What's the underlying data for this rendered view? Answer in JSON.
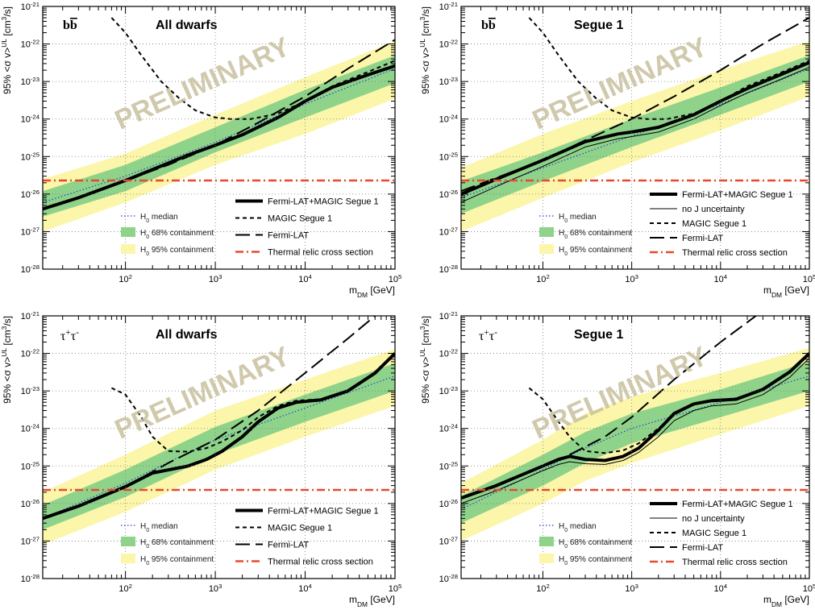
{
  "watermark_text": "PRELIMINARY",
  "colors": {
    "band95": "#fbf6a9",
    "band68": "#8fd38a",
    "median": "#2244cc",
    "relic": "#e8492d",
    "grid": "#7a7a7a",
    "watermark": "#c8bf9e"
  },
  "legend_labels": {
    "median": "median",
    "c68": "68% containment",
    "c95": "95% containment",
    "h0_base": "H",
    "h0_sub": "0"
  },
  "chart_data": [
    {
      "type": "line",
      "channel": "bb",
      "title": "All dwarfs",
      "xlabel_base": "m",
      "xlabel_sub": "DM",
      "xlabel_unit": " [GeV]",
      "ylabel": "95% <σ v>",
      "ylabel_sup": "UL",
      "ylabel_unit": " [cm",
      "ylabel_unit_sup": "3",
      "ylabel_unit_end": "/s]",
      "xscale": "log",
      "yscale": "log",
      "xlim": [
        12,
        100000
      ],
      "ylim": [
        1e-28,
        1e-21
      ],
      "x_ticks": [
        {
          "base": "10",
          "exp": "2"
        },
        {
          "base": "10",
          "exp": "3"
        },
        {
          "base": "10",
          "exp": "4"
        },
        {
          "base": "10",
          "exp": "5"
        }
      ],
      "y_ticks": [
        {
          "base": "10",
          "exp": "-28"
        },
        {
          "base": "10",
          "exp": "-27"
        },
        {
          "base": "10",
          "exp": "-26"
        },
        {
          "base": "10",
          "exp": "-25"
        },
        {
          "base": "10",
          "exp": "-24"
        },
        {
          "base": "10",
          "exp": "-23"
        },
        {
          "base": "10",
          "exp": "-22"
        },
        {
          "base": "10",
          "exp": "-21"
        }
      ],
      "legend": [
        "Fermi-LAT+MAGIC Segue 1",
        "MAGIC Segue 1",
        "Fermi-LAT",
        "Thermal relic cross section"
      ],
      "series": [
        {
          "name": "Fermi-LAT+MAGIC Segue 1",
          "style": "thick",
          "x": [
            12,
            30,
            100,
            200,
            500,
            1000,
            2000,
            5000,
            10000,
            20000,
            50000,
            100000
          ],
          "y": [
            4e-27,
            8e-27,
            2.3e-26,
            4.5e-26,
            1.1e-25,
            2e-25,
            3.8e-25,
            1.1e-24,
            3e-24,
            7e-24,
            1.5e-23,
            2.6e-23
          ]
        },
        {
          "name": "MAGIC Segue 1",
          "style": "short-dash",
          "x": [
            70,
            100,
            150,
            250,
            400,
            600,
            1000,
            1500,
            2500,
            5000,
            10000,
            20000,
            50000,
            100000
          ],
          "y": [
            5e-22,
            2e-22,
            5e-23,
            1e-23,
            3.5e-24,
            1.7e-24,
            1.1e-24,
            1e-24,
            1e-24,
            1.4e-24,
            3e-24,
            7.5e-24,
            1.8e-23,
            3.6e-23
          ]
        },
        {
          "name": "Fermi-LAT",
          "style": "long-dash",
          "x": [
            100,
            300,
            1000,
            3000,
            10000,
            30000,
            100000
          ],
          "y": [
            2.3e-26,
            6e-26,
            2e-25,
            8e-25,
            4e-24,
            2.2e-23,
            1.3e-22
          ]
        },
        {
          "name": "Thermal relic cross section",
          "style": "dash-dot",
          "x": [
            12,
            100000
          ],
          "y": [
            2.3e-26,
            2.3e-26
          ]
        }
      ],
      "expected": {
        "x": [
          12,
          100,
          1000,
          10000,
          100000
        ],
        "median": [
          6e-27,
          3e-26,
          2.4e-25,
          2.5e-24,
          2.2e-23
        ],
        "lo68": [
          2.5e-27,
          1.2e-26,
          1.3e-25,
          1.1e-24,
          9e-24
        ],
        "hi68": [
          1.2e-26,
          6e-26,
          6e-25,
          6e-24,
          5e-23
        ],
        "lo95": [
          1e-27,
          6e-27,
          6e-26,
          4e-25,
          3.5e-24
        ],
        "hi95": [
          2.5e-26,
          1.2e-25,
          1.3e-24,
          1.3e-23,
          1.2e-22
        ]
      }
    },
    {
      "type": "line",
      "channel": "bb",
      "title": "Segue 1",
      "xlabel_base": "m",
      "xlabel_sub": "DM",
      "xlabel_unit": " [GeV]",
      "ylabel": "95% <σ v>",
      "ylabel_sup": "UL",
      "ylabel_unit": " [cm",
      "ylabel_unit_sup": "3",
      "ylabel_unit_end": "/s]",
      "xscale": "log",
      "yscale": "log",
      "xlim": [
        12,
        100000
      ],
      "ylim": [
        1e-28,
        1e-21
      ],
      "x_ticks": [
        {
          "base": "10",
          "exp": "2"
        },
        {
          "base": "10",
          "exp": "3"
        },
        {
          "base": "10",
          "exp": "4"
        },
        {
          "base": "10",
          "exp": "5"
        }
      ],
      "y_ticks": [
        {
          "base": "10",
          "exp": "-28"
        },
        {
          "base": "10",
          "exp": "-27"
        },
        {
          "base": "10",
          "exp": "-26"
        },
        {
          "base": "10",
          "exp": "-25"
        },
        {
          "base": "10",
          "exp": "-24"
        },
        {
          "base": "10",
          "exp": "-23"
        },
        {
          "base": "10",
          "exp": "-22"
        },
        {
          "base": "10",
          "exp": "-21"
        }
      ],
      "legend": [
        "Fermi-LAT+MAGIC Segue 1",
        "no J uncertainty",
        "MAGIC Segue 1",
        "Fermi-LAT",
        "Thermal relic cross section"
      ],
      "series": [
        {
          "name": "Fermi-LAT+MAGIC Segue 1",
          "style": "thick",
          "x": [
            12,
            30,
            100,
            300,
            700,
            1000,
            2000,
            5000,
            10000,
            20000,
            50000,
            100000
          ],
          "y": [
            1e-26,
            2.5e-26,
            8e-26,
            2.5e-25,
            4e-25,
            4.5e-25,
            6e-25,
            1.3e-24,
            3e-24,
            6.5e-24,
            1.6e-23,
            3.2e-23
          ]
        },
        {
          "name": "no J uncertainty",
          "style": "thin",
          "x": [
            12,
            30,
            100,
            300,
            700,
            1000,
            2000,
            5000,
            10000,
            20000,
            50000,
            100000
          ],
          "y": [
            6e-27,
            1.6e-26,
            5.5e-26,
            1.8e-25,
            3e-25,
            3.4e-25,
            4.5e-25,
            1e-24,
            2.3e-24,
            5e-24,
            1.2e-23,
            2.4e-23
          ]
        },
        {
          "name": "MAGIC Segue 1",
          "style": "short-dash",
          "x": [
            70,
            100,
            150,
            250,
            400,
            600,
            1000,
            1500,
            2500,
            5000,
            10000,
            20000,
            50000,
            100000
          ],
          "y": [
            5e-22,
            2e-22,
            5e-23,
            1e-23,
            3.5e-24,
            1.7e-24,
            1.1e-24,
            1e-24,
            1e-24,
            1.4e-24,
            3e-24,
            7.5e-24,
            1.8e-23,
            3.6e-23
          ]
        },
        {
          "name": "Fermi-LAT",
          "style": "long-dash",
          "x": [
            12,
            100,
            300,
            1000,
            3000,
            10000,
            30000,
            100000
          ],
          "y": [
            1.2e-26,
            8e-26,
            2.7e-25,
            1e-24,
            4e-24,
            2e-23,
            1e-22,
            5e-22
          ]
        },
        {
          "name": "Thermal relic cross section",
          "style": "dash-dot",
          "x": [
            12,
            100000
          ],
          "y": [
            2.3e-26,
            2.3e-26
          ]
        }
      ],
      "expected": {
        "x": [
          12,
          100,
          1000,
          10000,
          100000
        ],
        "median": [
          8e-27,
          5e-26,
          3.5e-25,
          2.5e-24,
          2.2e-23
        ],
        "lo68": [
          3e-27,
          2.2e-26,
          1.8e-25,
          1.3e-24,
          1e-23
        ],
        "hi68": [
          2.2e-26,
          1.3e-25,
          1e-24,
          7e-24,
          5e-23
        ],
        "lo95": [
          1e-27,
          8e-27,
          7e-26,
          5e-25,
          4e-24
        ],
        "hi95": [
          5e-26,
          4e-25,
          3e-24,
          2e-23,
          1.2e-22
        ]
      }
    },
    {
      "type": "line",
      "channel": "tautau",
      "title": "All dwarfs",
      "xlabel_base": "m",
      "xlabel_sub": "DM",
      "xlabel_unit": " [GeV]",
      "ylabel": "95% <σ v>",
      "ylabel_sup": "UL",
      "ylabel_unit": " [cm",
      "ylabel_unit_sup": "3",
      "ylabel_unit_end": "/s]",
      "xscale": "log",
      "yscale": "log",
      "xlim": [
        12,
        100000
      ],
      "ylim": [
        1e-28,
        1e-21
      ],
      "x_ticks": [
        {
          "base": "10",
          "exp": "2"
        },
        {
          "base": "10",
          "exp": "3"
        },
        {
          "base": "10",
          "exp": "4"
        },
        {
          "base": "10",
          "exp": "5"
        }
      ],
      "y_ticks": [
        {
          "base": "10",
          "exp": "-28"
        },
        {
          "base": "10",
          "exp": "-27"
        },
        {
          "base": "10",
          "exp": "-26"
        },
        {
          "base": "10",
          "exp": "-25"
        },
        {
          "base": "10",
          "exp": "-24"
        },
        {
          "base": "10",
          "exp": "-23"
        },
        {
          "base": "10",
          "exp": "-22"
        },
        {
          "base": "10",
          "exp": "-21"
        }
      ],
      "legend": [
        "Fermi-LAT+MAGIC Segue 1",
        "MAGIC Segue 1",
        "Fermi-LAT",
        "Thermal relic cross section"
      ],
      "series": [
        {
          "name": "Fermi-LAT+MAGIC Segue 1",
          "style": "thick",
          "x": [
            12,
            30,
            100,
            200,
            500,
            800,
            1200,
            2000,
            3000,
            5000,
            8000,
            15000,
            30000,
            60000,
            100000
          ],
          "y": [
            4e-27,
            8.5e-27,
            2.8e-26,
            6.5e-26,
            1e-25,
            1.5e-25,
            2.5e-25,
            6e-25,
            1.5e-24,
            3.5e-24,
            5e-24,
            5.8e-24,
            1e-23,
            3e-23,
            1e-22
          ]
        },
        {
          "name": "MAGIC Segue 1",
          "style": "short-dash",
          "x": [
            70,
            100,
            150,
            200,
            300,
            500,
            800,
            1200,
            2000,
            3000,
            5000,
            8000,
            15000,
            30000,
            60000,
            100000
          ],
          "y": [
            1.2e-23,
            8e-24,
            2e-24,
            6e-25,
            2.5e-25,
            2.4e-25,
            3e-25,
            4.5e-25,
            9e-25,
            2e-24,
            4e-24,
            5.5e-24,
            6e-24,
            1e-23,
            3e-23,
            1e-22
          ]
        },
        {
          "name": "Fermi-LAT",
          "style": "long-dash",
          "x": [
            100,
            300,
            1000,
            3000,
            10000,
            30000,
            60000
          ],
          "y": [
            2.8e-26,
            1.2e-25,
            5e-25,
            3e-24,
            3e-23,
            2.5e-22,
            1e-21
          ]
        },
        {
          "name": "Thermal relic cross section",
          "style": "dash-dot",
          "x": [
            12,
            100000
          ],
          "y": [
            2.3e-26,
            2.3e-26
          ]
        }
      ],
      "expected": {
        "x": [
          12,
          100,
          1000,
          10000,
          100000
        ],
        "median": [
          4e-27,
          3.5e-26,
          5e-25,
          3.5e-24,
          2.5e-23
        ],
        "lo68": [
          2e-27,
          1.5e-26,
          2e-25,
          1.5e-24,
          1e-23
        ],
        "hi68": [
          9e-27,
          8e-26,
          1.1e-24,
          8e-24,
          5.5e-23
        ],
        "lo95": [
          8e-28,
          6e-27,
          8e-26,
          6e-25,
          4e-24
        ],
        "hi95": [
          2e-26,
          2e-25,
          3e-24,
          2e-23,
          1.3e-22
        ]
      }
    },
    {
      "type": "line",
      "channel": "tautau",
      "title": "Segue 1",
      "xlabel_base": "m",
      "xlabel_sub": "DM",
      "xlabel_unit": " [GeV]",
      "ylabel": "95% <σ v>",
      "ylabel_sup": "UL",
      "ylabel_unit": " [cm",
      "ylabel_unit_sup": "3",
      "ylabel_unit_end": "/s]",
      "xscale": "log",
      "yscale": "log",
      "xlim": [
        12,
        100000
      ],
      "ylim": [
        1e-28,
        1e-21
      ],
      "x_ticks": [
        {
          "base": "10",
          "exp": "2"
        },
        {
          "base": "10",
          "exp": "3"
        },
        {
          "base": "10",
          "exp": "4"
        },
        {
          "base": "10",
          "exp": "5"
        }
      ],
      "y_ticks": [
        {
          "base": "10",
          "exp": "-28"
        },
        {
          "base": "10",
          "exp": "-27"
        },
        {
          "base": "10",
          "exp": "-26"
        },
        {
          "base": "10",
          "exp": "-25"
        },
        {
          "base": "10",
          "exp": "-24"
        },
        {
          "base": "10",
          "exp": "-23"
        },
        {
          "base": "10",
          "exp": "-22"
        },
        {
          "base": "10",
          "exp": "-21"
        }
      ],
      "legend": [
        "Fermi-LAT+MAGIC Segue 1",
        "no J uncertainty",
        "MAGIC Segue 1",
        "Fermi-LAT",
        "Thermal relic cross section"
      ],
      "series": [
        {
          "name": "Fermi-LAT+MAGIC Segue 1",
          "style": "thick",
          "x": [
            12,
            30,
            100,
            150,
            200,
            300,
            500,
            800,
            1200,
            2000,
            3000,
            5000,
            8000,
            15000,
            30000,
            60000,
            100000
          ],
          "y": [
            1.4e-26,
            3e-26,
            1e-25,
            1.5e-25,
            1.8e-25,
            1.5e-25,
            1.4e-25,
            1.8e-25,
            3e-25,
            9e-25,
            2.5e-24,
            4.5e-24,
            5.5e-24,
            6e-24,
            1.1e-23,
            3.2e-23,
            1e-22
          ]
        },
        {
          "name": "no J uncertainty",
          "style": "thin",
          "x": [
            12,
            30,
            100,
            150,
            200,
            300,
            500,
            800,
            1200,
            2000,
            3000,
            5000,
            8000,
            15000,
            30000,
            60000,
            100000
          ],
          "y": [
            1e-26,
            2.2e-26,
            7.5e-26,
            1.1e-25,
            1.3e-25,
            1.15e-25,
            1.1e-25,
            1.4e-25,
            2.3e-25,
            6e-25,
            1.6e-24,
            3e-24,
            4e-24,
            4.5e-24,
            8e-24,
            2.3e-23,
            7.5e-23
          ]
        },
        {
          "name": "MAGIC Segue 1",
          "style": "short-dash",
          "x": [
            70,
            100,
            150,
            200,
            300,
            500,
            800,
            1200,
            2000,
            3000,
            5000,
            8000,
            15000,
            30000,
            60000,
            100000
          ],
          "y": [
            1.2e-23,
            6e-24,
            1.5e-24,
            6e-25,
            2.5e-25,
            2.2e-25,
            2.6e-25,
            4e-25,
            1e-24,
            2.3e-24,
            4.5e-24,
            5.5e-24,
            6e-24,
            1.1e-23,
            3.2e-23,
            1e-22
          ]
        },
        {
          "name": "Fermi-LAT",
          "style": "long-dash",
          "x": [
            200,
            500,
            1000,
            3000,
            10000,
            25000
          ],
          "y": [
            2e-25,
            6e-25,
            2e-24,
            2e-23,
            2e-22,
            1e-21
          ]
        },
        {
          "name": "Thermal relic cross section",
          "style": "dash-dot",
          "x": [
            12,
            100000
          ],
          "y": [
            2.3e-26,
            2.3e-26
          ]
        }
      ],
      "expected": {
        "x": [
          12,
          100,
          300,
          1000,
          10000,
          100000
        ],
        "median": [
          7e-27,
          8e-26,
          3e-25,
          1e-24,
          5e-24,
          2.5e-23
        ],
        "lo68": [
          3e-27,
          3e-26,
          1.2e-25,
          4e-25,
          2e-24,
          1e-23
        ],
        "hi68": [
          1.6e-26,
          2e-25,
          8e-25,
          2.5e-24,
          1.1e-23,
          6e-23
        ],
        "lo95": [
          1e-27,
          1e-26,
          4e-26,
          1.2e-25,
          7e-25,
          4e-24
        ],
        "hi95": [
          3.5e-26,
          5e-25,
          2.5e-24,
          7e-24,
          3e-23,
          1.4e-22
        ]
      }
    }
  ]
}
